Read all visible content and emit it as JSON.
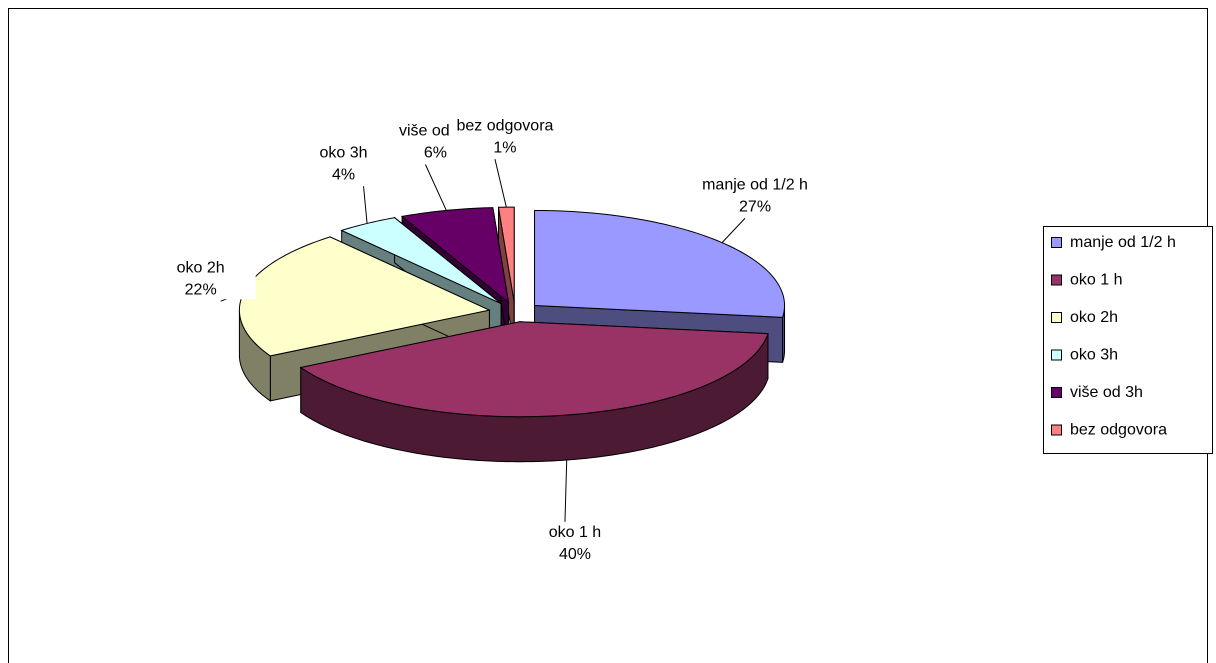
{
  "chart_data": {
    "type": "pie",
    "categories": [
      "manje od 1/2 h",
      "oko 1 h",
      "oko 2h",
      "oko 3h",
      "više od 3h",
      "bez odgovora"
    ],
    "values": [
      27,
      40,
      22,
      4,
      6,
      1
    ],
    "value_labels": [
      "27%",
      "40%",
      "22%",
      "4%",
      "6%",
      "1%"
    ],
    "colors": [
      "#9999FF",
      "#993366",
      "#FFFFCC",
      "#CCFFFF",
      "#660066",
      "#FF8080"
    ],
    "legend": "right"
  }
}
